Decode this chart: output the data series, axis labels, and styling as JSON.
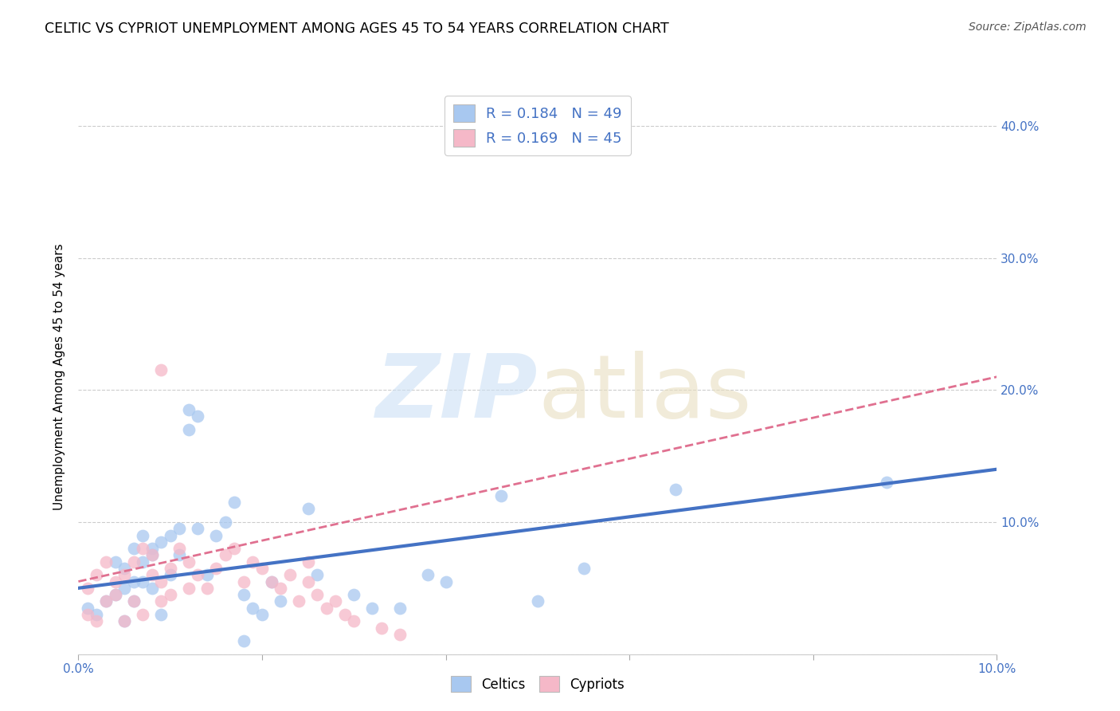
{
  "title": "CELTIC VS CYPRIOT UNEMPLOYMENT AMONG AGES 45 TO 54 YEARS CORRELATION CHART",
  "source": "Source: ZipAtlas.com",
  "ylabel": "Unemployment Among Ages 45 to 54 years",
  "xlim": [
    0.0,
    0.1
  ],
  "ylim": [
    0.0,
    0.42
  ],
  "xticks": [
    0.0,
    0.02,
    0.04,
    0.06,
    0.08,
    0.1
  ],
  "yticks": [
    0.0,
    0.1,
    0.2,
    0.3,
    0.4
  ],
  "xtick_labels": [
    "0.0%",
    "",
    "",
    "",
    "",
    "10.0%"
  ],
  "ytick_labels_right": [
    "",
    "10.0%",
    "20.0%",
    "30.0%",
    "40.0%"
  ],
  "legend_labels": [
    "Celtics",
    "Cypriots"
  ],
  "color_celtic": "#a8c8f0",
  "color_cypriot": "#f5b8c8",
  "trendline_celtic_color": "#4472c4",
  "trendline_cypriot_color": "#e07090",
  "celtic_x": [
    0.001,
    0.002,
    0.003,
    0.004,
    0.004,
    0.005,
    0.005,
    0.005,
    0.006,
    0.006,
    0.006,
    0.007,
    0.007,
    0.007,
    0.008,
    0.008,
    0.008,
    0.009,
    0.009,
    0.01,
    0.01,
    0.011,
    0.011,
    0.012,
    0.012,
    0.013,
    0.013,
    0.014,
    0.015,
    0.016,
    0.017,
    0.018,
    0.019,
    0.02,
    0.021,
    0.022,
    0.025,
    0.026,
    0.03,
    0.032,
    0.035,
    0.038,
    0.04,
    0.046,
    0.05,
    0.055,
    0.065,
    0.088,
    0.018
  ],
  "celtic_y": [
    0.035,
    0.03,
    0.04,
    0.045,
    0.07,
    0.025,
    0.05,
    0.065,
    0.04,
    0.055,
    0.08,
    0.055,
    0.07,
    0.09,
    0.05,
    0.075,
    0.08,
    0.03,
    0.085,
    0.06,
    0.09,
    0.075,
    0.095,
    0.185,
    0.17,
    0.18,
    0.095,
    0.06,
    0.09,
    0.1,
    0.115,
    0.045,
    0.035,
    0.03,
    0.055,
    0.04,
    0.11,
    0.06,
    0.045,
    0.035,
    0.035,
    0.06,
    0.055,
    0.12,
    0.04,
    0.065,
    0.125,
    0.13,
    0.01
  ],
  "cypriot_x": [
    0.001,
    0.001,
    0.002,
    0.002,
    0.003,
    0.003,
    0.004,
    0.004,
    0.005,
    0.005,
    0.006,
    0.006,
    0.007,
    0.007,
    0.008,
    0.008,
    0.009,
    0.009,
    0.01,
    0.01,
    0.011,
    0.012,
    0.012,
    0.013,
    0.014,
    0.015,
    0.016,
    0.017,
    0.018,
    0.019,
    0.02,
    0.021,
    0.022,
    0.023,
    0.024,
    0.025,
    0.025,
    0.026,
    0.027,
    0.028,
    0.029,
    0.03,
    0.033,
    0.035,
    0.009
  ],
  "cypriot_y": [
    0.03,
    0.05,
    0.025,
    0.06,
    0.04,
    0.07,
    0.045,
    0.055,
    0.025,
    0.06,
    0.04,
    0.07,
    0.03,
    0.08,
    0.06,
    0.075,
    0.04,
    0.055,
    0.045,
    0.065,
    0.08,
    0.05,
    0.07,
    0.06,
    0.05,
    0.065,
    0.075,
    0.08,
    0.055,
    0.07,
    0.065,
    0.055,
    0.05,
    0.06,
    0.04,
    0.07,
    0.055,
    0.045,
    0.035,
    0.04,
    0.03,
    0.025,
    0.02,
    0.015,
    0.215
  ],
  "trendline_celtic_x0": 0.0,
  "trendline_celtic_y0": 0.05,
  "trendline_celtic_x1": 0.1,
  "trendline_celtic_y1": 0.14,
  "trendline_cypriot_x0": 0.0,
  "trendline_cypriot_y0": 0.055,
  "trendline_cypriot_x1": 0.1,
  "trendline_cypriot_y1": 0.21
}
